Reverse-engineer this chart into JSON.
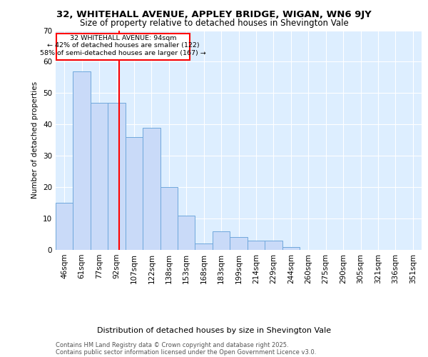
{
  "title1": "32, WHITEHALL AVENUE, APPLEY BRIDGE, WIGAN, WN6 9JY",
  "title2": "Size of property relative to detached houses in Shevington Vale",
  "xlabel": "Distribution of detached houses by size in Shevington Vale",
  "ylabel": "Number of detached properties",
  "bin_labels": [
    "46sqm",
    "61sqm",
    "77sqm",
    "92sqm",
    "107sqm",
    "122sqm",
    "138sqm",
    "153sqm",
    "168sqm",
    "183sqm",
    "199sqm",
    "214sqm",
    "229sqm",
    "244sqm",
    "260sqm",
    "275sqm",
    "290sqm",
    "305sqm",
    "321sqm",
    "336sqm",
    "351sqm"
  ],
  "bar_values": [
    15,
    57,
    47,
    47,
    36,
    39,
    20,
    11,
    2,
    6,
    4,
    3,
    3,
    1,
    0,
    0,
    0,
    0,
    0,
    0,
    0
  ],
  "bar_color": "#c9daf8",
  "bar_edge_color": "#6fa8dc",
  "redline_x": 3.13,
  "ylim": [
    0,
    70
  ],
  "yticks": [
    0,
    10,
    20,
    30,
    40,
    50,
    60,
    70
  ],
  "background_color": "#ddeeff",
  "property_label": "32 WHITEHALL AVENUE: 94sqm",
  "annotation_line1": "← 42% of detached houses are smaller (122)",
  "annotation_line2": "58% of semi-detached houses are larger (167) →",
  "footer1": "Contains HM Land Registry data © Crown copyright and database right 2025.",
  "footer2": "Contains public sector information licensed under the Open Government Licence v3.0."
}
